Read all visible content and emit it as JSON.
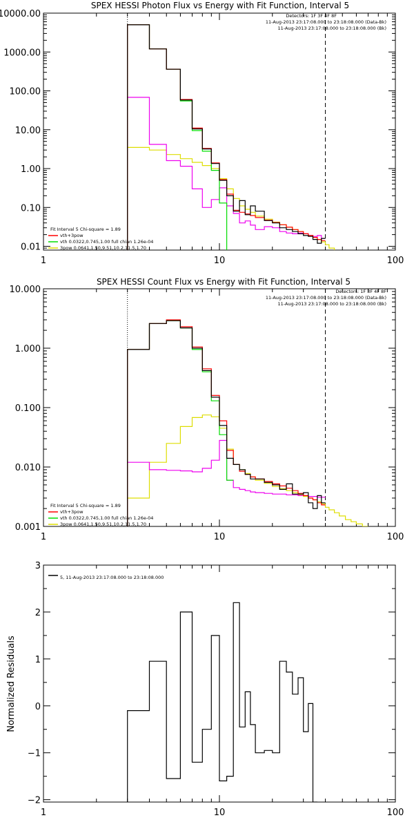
{
  "chart_data": [
    {
      "type": "line",
      "title": "SPEX HESSI Photon Flux vs Energy with Fit Function, Interval 5",
      "xscale": "log",
      "yscale": "log",
      "xlim": [
        1,
        100
      ],
      "ylim": [
        0.008,
        10000
      ],
      "x_ticks": [
        "1",
        "10",
        "100"
      ],
      "y_ticks": [
        {
          "value": 10000,
          "label": "10000.00"
        },
        {
          "value": 1000,
          "label": "1000.00"
        },
        {
          "value": 100,
          "label": "100.00"
        },
        {
          "value": 10,
          "label": "10.00"
        },
        {
          "value": 1,
          "label": "1.00"
        },
        {
          "value": 0.1,
          "label": "0.10"
        },
        {
          "value": 0.01,
          "label": "0.01"
        }
      ],
      "fit_range": [
        3,
        40
      ],
      "header_lines": [
        "Detectors: 1F 3F 4F 8F",
        "11-Aug-2013 23:17:08.000 to 23:18:08.000 (Data-Bk)",
        "11-Aug-2013 23:17:08.000 to 23:18:08.000 (Bk)"
      ],
      "fit_label": "Fit Interval 5   Chi-square = 1.89",
      "legend_entries": [
        "vth+3pow",
        "vth 0.0322,0.745,1.00  full chian 1.26e-04",
        "3pow 0.0641,1.50,9.51,10.2,11.5,1.70"
      ],
      "colors": {
        "data": "#000000",
        "total": "#ff0000",
        "vth": "#00dd00",
        "pow": "#dddd00",
        "bk": "#ee00ee"
      },
      "edges": [
        3,
        4,
        5,
        6,
        7,
        8,
        9,
        10,
        11,
        12,
        13,
        14,
        15,
        16,
        18,
        20,
        22,
        24,
        26,
        28,
        30,
        32,
        34,
        36,
        38,
        40,
        42,
        45,
        48
      ],
      "series": [
        {
          "role": "data",
          "values": [
            5000,
            1200,
            360,
            58,
            10.5,
            3.2,
            1.35,
            0.5,
            0.2,
            0.08,
            0.15,
            0.065,
            0.11,
            0.08,
            0.046,
            0.04,
            0.03,
            0.027,
            0.024,
            0.021,
            0.019,
            0.018,
            0.015,
            0.012,
            0.016
          ]
        },
        {
          "role": "total",
          "values": [
            5000,
            1200,
            360,
            60,
            11,
            3.3,
            1.4,
            0.52,
            0.22,
            0.085,
            0.075,
            0.068,
            0.062,
            0.055,
            0.047,
            0.041,
            0.036,
            0.031,
            0.027,
            0.024,
            0.021,
            0.019,
            0.017,
            0.015,
            0.014
          ]
        },
        {
          "role": "vth",
          "values": [
            5000,
            1200,
            360,
            55,
            9.5,
            2.8,
            0.9,
            0.13,
            0.004
          ]
        },
        {
          "role": "pow",
          "values": [
            3.5,
            3.0,
            2.3,
            1.8,
            1.45,
            1.2,
            1.0,
            0.55,
            0.3,
            0.17,
            0.11,
            0.09,
            0.075,
            0.06,
            0.05,
            0.042,
            0.036,
            0.031,
            0.027,
            0.024,
            0.021,
            0.019,
            0.017,
            0.015,
            0.013,
            0.011,
            0.009,
            0.007
          ]
        },
        {
          "role": "bk",
          "values": [
            68,
            4.2,
            1.6,
            1.15,
            0.3,
            0.1,
            0.16,
            0.32,
            0.11,
            0.07,
            0.04,
            0.045,
            0.035,
            0.027,
            0.032,
            0.03,
            0.024,
            0.022,
            0.021,
            0.022,
            0.021,
            0.019,
            0.018,
            0.019,
            0.016
          ]
        }
      ]
    },
    {
      "type": "line",
      "title": "SPEX HESSI Count Flux vs Energy with Fit Function, Interval 5",
      "xscale": "log",
      "yscale": "log",
      "xlim": [
        1,
        100
      ],
      "ylim": [
        0.001,
        10
      ],
      "x_ticks": [
        "1",
        "10",
        "100"
      ],
      "y_ticks": [
        {
          "value": 10,
          "label": "10.000"
        },
        {
          "value": 1,
          "label": "1.000"
        },
        {
          "value": 0.1,
          "label": "0.100"
        },
        {
          "value": 0.01,
          "label": "0.010"
        },
        {
          "value": 0.001,
          "label": "0.001"
        }
      ],
      "fit_range": [
        3,
        40
      ],
      "header_lines": [
        "Detectors: 1F 3F 4F 8F",
        "11-Aug-2013 23:17:08.000 to 23:18:08.000 (Data-Bk)",
        "11-Aug-2013 23:17:08.000 to 23:18:08.000 (Bk)"
      ],
      "fit_label": "Fit Interval 5   Chi-square = 1.89",
      "legend_entries": [
        "vth+3pow",
        "vth 0.0322,0.745,1.00  full chian 1.26e-04",
        "3pow 0.0641,1.50,9.51,10.2,11.5,1.70"
      ],
      "colors": {
        "data": "#000000",
        "total": "#ff0000",
        "vth": "#00dd00",
        "pow": "#dddd00",
        "bk": "#ee00ee"
      },
      "edges": [
        3,
        4,
        5,
        6,
        7,
        8,
        9,
        10,
        11,
        12,
        13,
        14,
        15,
        16,
        18,
        20,
        22,
        24,
        26,
        28,
        30,
        32,
        34,
        36,
        38,
        40,
        42,
        45,
        48,
        52,
        56,
        60,
        65,
        70
      ],
      "series": [
        {
          "role": "data",
          "values": [
            0.95,
            2.6,
            2.9,
            2.2,
            1.0,
            0.42,
            0.15,
            0.05,
            0.014,
            0.011,
            0.009,
            0.0075,
            0.0063,
            0.0063,
            0.0055,
            0.005,
            0.0042,
            0.0052,
            0.0035,
            0.0035,
            0.0037,
            0.0025,
            0.002,
            0.0033,
            0.0025
          ]
        },
        {
          "role": "total",
          "values": [
            0.95,
            2.6,
            3.0,
            2.3,
            1.05,
            0.45,
            0.16,
            0.06,
            0.019,
            0.011,
            0.0085,
            0.0075,
            0.0068,
            0.0063,
            0.0057,
            0.0052,
            0.0048,
            0.0044,
            0.004,
            0.0036,
            0.0033,
            0.003,
            0.0028,
            0.0025,
            0.0023
          ]
        },
        {
          "role": "vth",
          "values": [
            0.95,
            2.6,
            2.9,
            2.2,
            0.95,
            0.4,
            0.13,
            0.035,
            0.006
          ]
        },
        {
          "role": "pow",
          "values": [
            0.003,
            0.012,
            0.025,
            0.048,
            0.068,
            0.075,
            0.07,
            0.045,
            0.02,
            0.011,
            0.009,
            0.0078,
            0.0068,
            0.006,
            0.0053,
            0.0047,
            0.0043,
            0.004,
            0.0037,
            0.0034,
            0.0032,
            0.003,
            0.0028,
            0.0026,
            0.0024,
            0.0021,
            0.0019,
            0.0017,
            0.0015,
            0.0013,
            0.0012,
            0.0011,
            0.001
          ]
        },
        {
          "role": "bk",
          "values": [
            0.012,
            0.009,
            0.0088,
            0.0086,
            0.0083,
            0.0095,
            0.013,
            0.028,
            0.006,
            0.0045,
            0.0042,
            0.004,
            0.0038,
            0.0037,
            0.0036,
            0.0035,
            0.0035,
            0.0034,
            0.0034,
            0.0033,
            0.0033,
            0.0032,
            0.0032,
            0.0031,
            0.0031
          ]
        }
      ]
    },
    {
      "type": "line",
      "title": "",
      "ylabel": "Normalized Residuals",
      "xscale": "log",
      "xlim": [
        1,
        100
      ],
      "ylim": [
        -2.05,
        3
      ],
      "x_ticks": [
        "1",
        "10",
        "100"
      ],
      "y_ticks": [
        {
          "value": 3,
          "label": "3"
        },
        {
          "value": 2,
          "label": "2"
        },
        {
          "value": 1,
          "label": "1"
        },
        {
          "value": 0,
          "label": "0"
        },
        {
          "value": -1,
          "label": "−1"
        },
        {
          "value": -2,
          "label": "−2"
        }
      ],
      "legend_entries": [
        "5, 11-Aug-2013 23:17:08.000 to 23:18:08.000"
      ],
      "colors": {
        "data": "#000000"
      },
      "edges": [
        3,
        4,
        5,
        6,
        7,
        8,
        9,
        10,
        11,
        12,
        13,
        14,
        15,
        16,
        18,
        20,
        22,
        24,
        26,
        28,
        30,
        32,
        34,
        36,
        38,
        40
      ],
      "series": [
        {
          "role": "data",
          "values": [
            -0.1,
            0.95,
            -1.55,
            2.0,
            -1.2,
            -0.5,
            1.5,
            -1.6,
            -1.5,
            2.2,
            -0.45,
            0.3,
            -0.4,
            -1.0,
            -0.95,
            -1.0,
            0.95,
            0.72,
            0.25,
            0.6,
            -0.55,
            0.05,
            -2.05
          ]
        }
      ]
    }
  ]
}
